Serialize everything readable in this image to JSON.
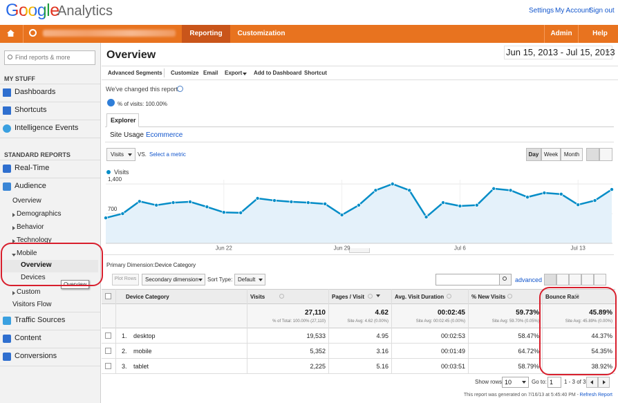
{
  "header": {
    "logo": {
      "google": "Google",
      "product": "Analytics"
    },
    "links": [
      "Settings",
      "My Account",
      "Sign out"
    ]
  },
  "nav": {
    "tabs": [
      "Reporting",
      "Customization"
    ],
    "right": [
      "Admin",
      "Help"
    ]
  },
  "sidebar": {
    "search_placeholder": "Find reports & more",
    "my_stuff": {
      "title": "MY STUFF",
      "items": [
        "Dashboards",
        "Shortcuts",
        "Intelligence Events"
      ]
    },
    "standard_reports": {
      "title": "STANDARD REPORTS",
      "items": [
        "Real-Time",
        "Audience",
        "Overview",
        "Demographics",
        "Behavior",
        "Technology",
        "Mobile",
        "Overview",
        "Devices",
        "Custom",
        "Visitors Flow",
        "Traffic Sources",
        "Content",
        "Conversions"
      ]
    },
    "tooltip": "Overview"
  },
  "main": {
    "title": "Overview",
    "date_range": "Jun 15, 2013 - Jul 15, 2013",
    "toolbar": [
      "Advanced Segments",
      "Customize",
      "Email",
      "Export",
      "Add to Dashboard",
      "Shortcut"
    ],
    "notice": "We've changed this report.",
    "segment": "% of visits: 100.00%",
    "tab": "Explorer",
    "subtabs": [
      "Site Usage",
      "Ecommerce"
    ],
    "metric": "Visits",
    "vs": "VS.",
    "select_metric": "Select a metric",
    "periods": [
      "Day",
      "Week",
      "Month"
    ],
    "primary_dimension_label": "Primary Dimension:",
    "primary_dimension": "Device Category",
    "plot_rows": "Plot Rows",
    "secondary_dimension": "Secondary dimension",
    "sort_type_label": "Sort Type:",
    "sort_type": "Default",
    "advanced": "advanced"
  },
  "chart_data": {
    "type": "line",
    "categories": [
      null,
      null,
      null,
      null,
      null,
      null,
      null,
      "Jun 22",
      null,
      null,
      null,
      null,
      null,
      null,
      "Jun 29",
      null,
      null,
      null,
      null,
      null,
      null,
      "Jul 6",
      null,
      null,
      null,
      null,
      null,
      null,
      "Jul 13",
      null,
      null
    ],
    "series": [
      {
        "name": "Visits",
        "color": "#058dc7",
        "values": [
          600,
          700,
          990,
          900,
          960,
          980,
          860,
          730,
          720,
          1060,
          1010,
          980,
          960,
          930,
          670,
          900,
          1250,
          1400,
          1250,
          620,
          960,
          880,
          900,
          1290,
          1250,
          1090,
          1190,
          1160,
          910,
          1010,
          1270
        ]
      }
    ],
    "ylim": [
      0,
      1500
    ],
    "yticks": [
      700,
      {
        "value": 1400,
        "label": "1,400"
      }
    ],
    "grid": true
  },
  "table": {
    "columns": [
      "Device Category",
      "Visits",
      "Pages / Visit",
      "Avg. Visit Duration",
      "% New Visits",
      "Bounce Rate"
    ],
    "totals": [
      {
        "value": "27,110",
        "note": "% of Total: 100.00% (27,110)"
      },
      {
        "value": "4.62",
        "note": "Site Avg: 4.62 (0.00%)"
      },
      {
        "value": "00:02:45",
        "note": "Site Avg: 00:02:45 (0.00%)"
      },
      {
        "value": "59.73%",
        "note": "Site Avg: 59.70% (0.05%)"
      },
      {
        "value": "45.89%",
        "note": "Site Avg: 45.89% (0.00%)"
      }
    ],
    "rows": [
      [
        "1.",
        "desktop",
        "19,533",
        "4.95",
        "00:02:53",
        "58.47%",
        "44.37%"
      ],
      [
        "2.",
        "mobile",
        "5,352",
        "3.16",
        "00:01:49",
        "64.72%",
        "54.35%"
      ],
      [
        "3.",
        "tablet",
        "2,225",
        "5.16",
        "00:03:51",
        "58.79%",
        "38.92%"
      ]
    ]
  },
  "footer": {
    "show_rows_label": "Show rows:",
    "show_rows": "10",
    "goto_label": "Go to:",
    "goto": "1",
    "range": "1 - 3 of 3",
    "generated": "This report was generated on 7/16/13 at 5:45:40 PM - ",
    "refresh": "Refresh Report"
  }
}
